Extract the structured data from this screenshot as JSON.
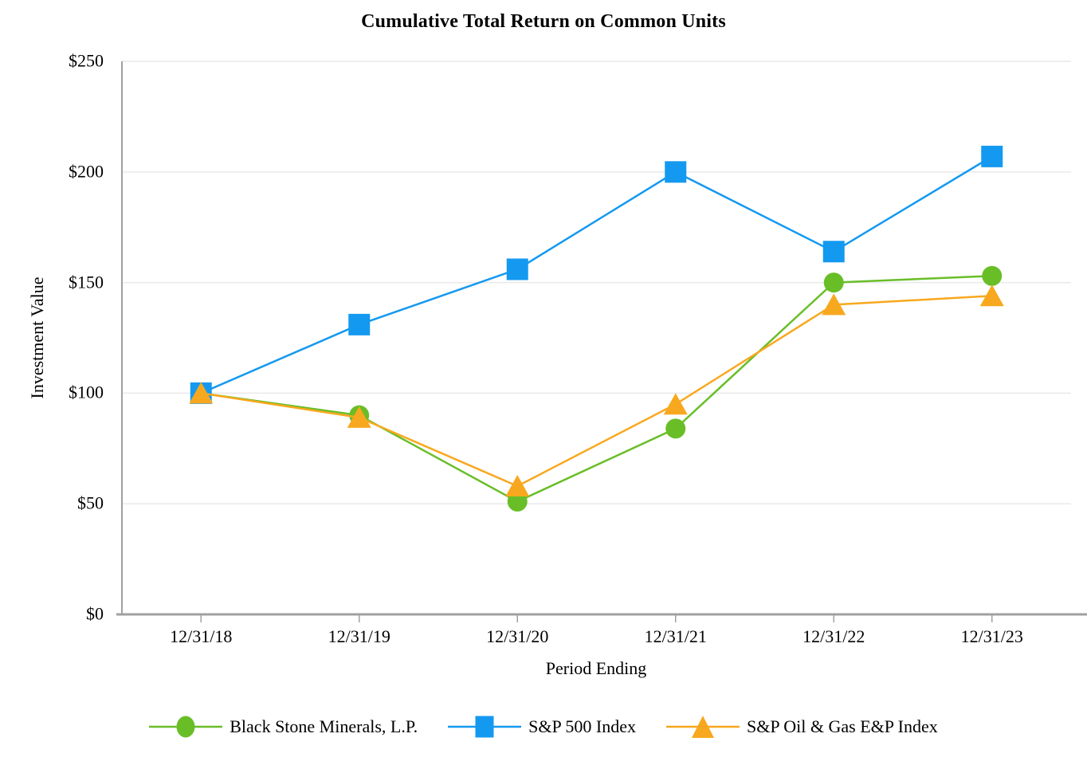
{
  "chart_data": {
    "type": "line",
    "title": "Cumulative Total Return on Common Units",
    "xlabel": "Period Ending",
    "ylabel": "Investment Value",
    "x": [
      "12/31/18",
      "12/31/19",
      "12/31/20",
      "12/31/21",
      "12/31/22",
      "12/31/23"
    ],
    "series": [
      {
        "name": "Black Stone Minerals, L.P.",
        "marker": "circle",
        "color": "#69BE28",
        "values": [
          100,
          90,
          51,
          84,
          150,
          153
        ]
      },
      {
        "name": "S&P 500 Index",
        "marker": "square",
        "color": "#1499F0",
        "values": [
          100,
          131,
          156,
          200,
          164,
          207
        ]
      },
      {
        "name": "S&P Oil & Gas E&P Index",
        "marker": "triangle",
        "color": "#F8A81E",
        "values": [
          100,
          89,
          58,
          95,
          140,
          144
        ]
      }
    ],
    "ylim": [
      0,
      250
    ],
    "yticks": [
      0,
      50,
      100,
      150,
      200,
      250
    ],
    "ytick_labels": [
      "$0",
      "$50",
      "$100",
      "$150",
      "$200",
      "$250"
    ],
    "grid": true,
    "legend_position": "bottom"
  },
  "colors": {
    "gridline": "#E9E9E9",
    "axis": "#A0A0A0",
    "text": "#000000",
    "background": "#FFFFFF"
  }
}
